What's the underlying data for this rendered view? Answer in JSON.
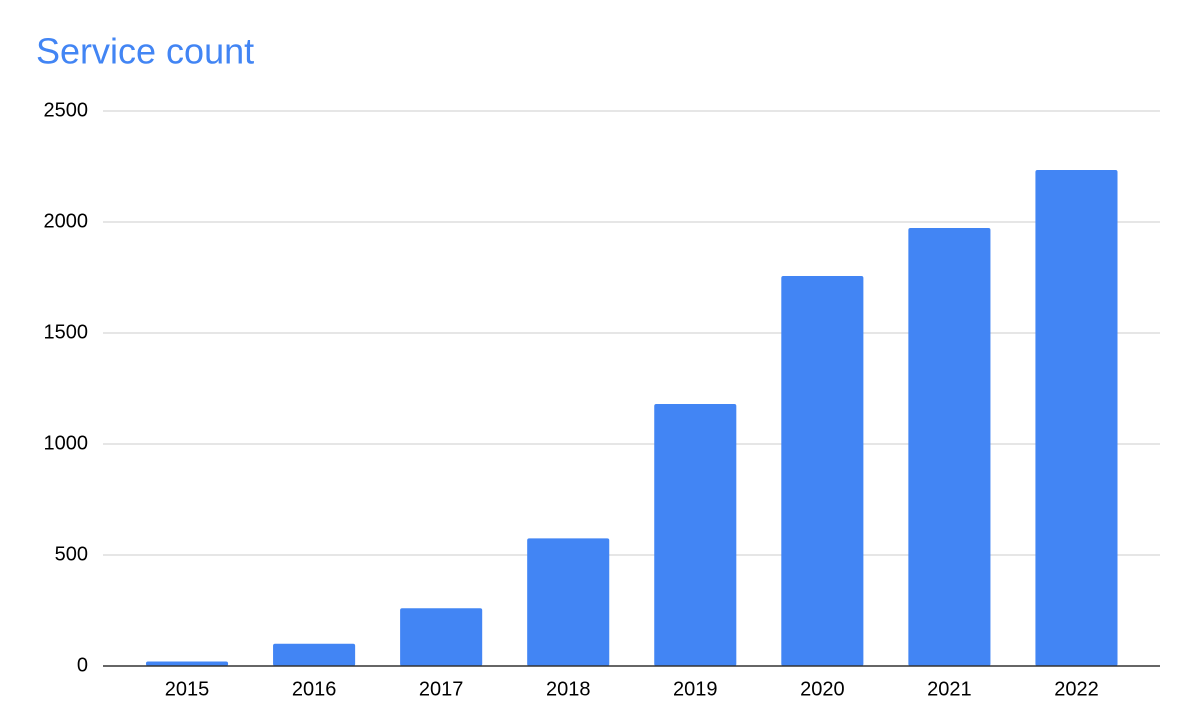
{
  "chart_data": {
    "type": "bar",
    "title": "Service count",
    "categories": [
      "2015",
      "2016",
      "2017",
      "2018",
      "2019",
      "2020",
      "2021",
      "2022"
    ],
    "values": [
      20,
      100,
      260,
      575,
      1180,
      1757,
      1973,
      2234
    ],
    "color": "#4285f4",
    "ylim": [
      0,
      2500
    ],
    "yticks": [
      0,
      500,
      1000,
      1500,
      2000,
      2500
    ],
    "grid": true
  }
}
